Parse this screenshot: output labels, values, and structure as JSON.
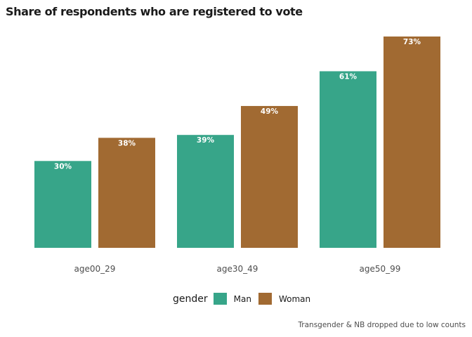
{
  "chart_data": {
    "type": "bar",
    "title": "Share of respondents who are registered to vote",
    "categories": [
      "age00_29",
      "age30_49",
      "age50_99"
    ],
    "series": [
      {
        "name": "Man",
        "values": [
          30,
          39,
          61
        ],
        "labels": [
          "30%",
          "39%",
          "61%"
        ],
        "color": "#37a589"
      },
      {
        "name": "Woman",
        "values": [
          38,
          49,
          73
        ],
        "labels": [
          "38%",
          "49%",
          "73%"
        ],
        "color": "#a16a32"
      }
    ],
    "ylim": [
      0,
      73
    ],
    "xlabel": "",
    "ylabel": "",
    "grid": false,
    "legend": {
      "title": "gender",
      "position": "bottom"
    },
    "caption": "Transgender & NB dropped due to low counts"
  }
}
